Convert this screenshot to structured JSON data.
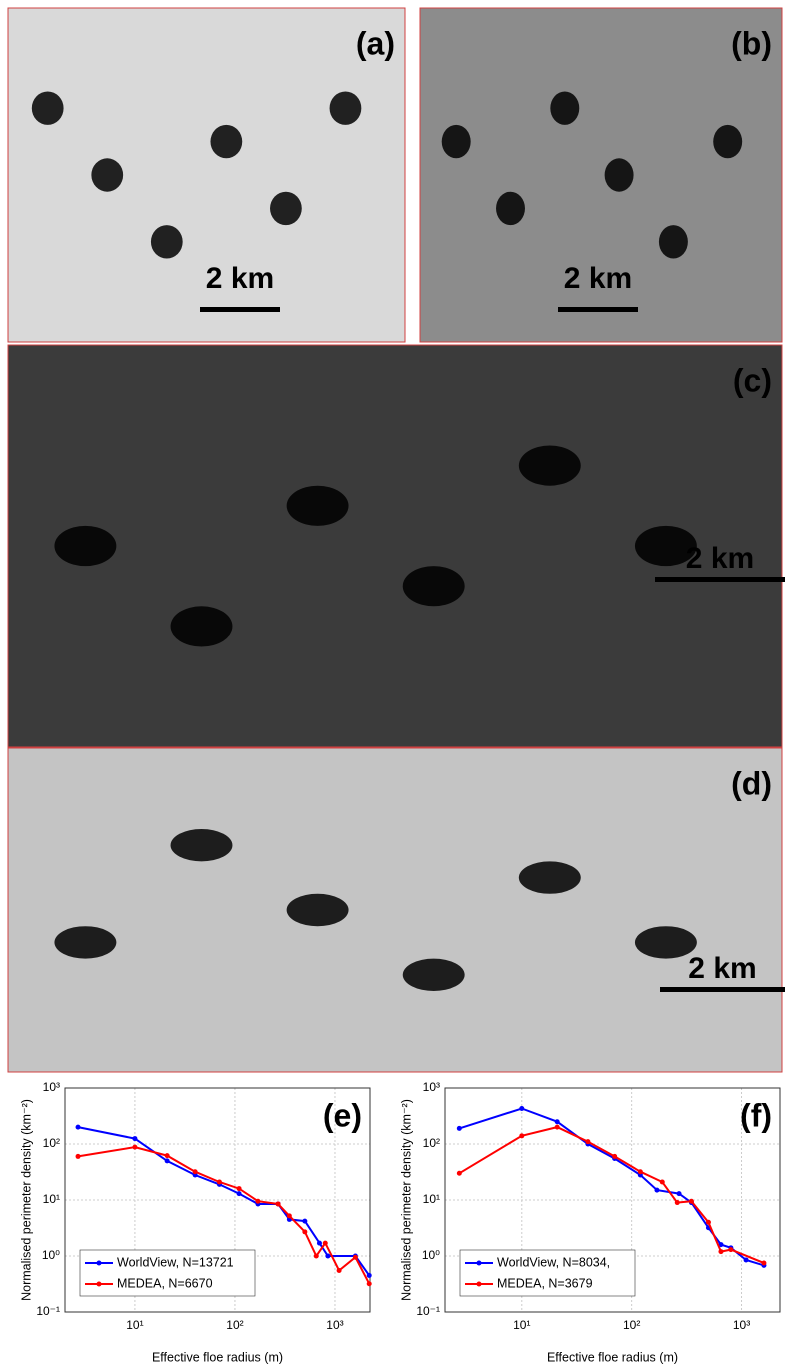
{
  "panels": [
    {
      "label": "(a)",
      "scale_bar": "2 km"
    },
    {
      "label": "(b)",
      "scale_bar": "2 km"
    },
    {
      "label": "(c)",
      "scale_bar": "2 km"
    },
    {
      "label": "(d)",
      "scale_bar": "2 km"
    }
  ],
  "chart_data": [
    {
      "type": "line",
      "panel_label": "(e)",
      "x_label": "Effective floe radius  (m)",
      "y_label": "Normalised perimeter density (km⁻²)",
      "xscale": "log",
      "yscale": "log",
      "grid": true,
      "legend": "lower-left",
      "xlim": [
        2,
        2240
      ],
      "ylim": [
        0.1,
        1000
      ],
      "xticks": [
        {
          "value": 10,
          "label": "10¹"
        },
        {
          "value": 100,
          "label": "10²"
        },
        {
          "value": 1000,
          "label": "10³"
        }
      ],
      "yticks": [
        {
          "value": 0.1,
          "label": "10⁻¹"
        },
        {
          "value": 1,
          "label": "10⁰"
        },
        {
          "value": 10,
          "label": "10¹"
        },
        {
          "value": 100,
          "label": "10²"
        },
        {
          "value": 1000,
          "label": "10³"
        }
      ],
      "series": [
        {
          "name": "WorldView, N=13721",
          "color": "#0000ff",
          "x": [
            2.7,
            10,
            21,
            40,
            70,
            110,
            170,
            270,
            350,
            500,
            700,
            850,
            1600,
            2200
          ],
          "values": [
            200,
            125,
            50,
            28,
            19,
            13,
            8.5,
            8.5,
            4.5,
            4.2,
            1.7,
            1.0,
            1.0,
            0.45
          ]
        },
        {
          "name": "MEDEA, N=6670",
          "color": "#ff0000",
          "x": [
            2.7,
            10,
            21,
            40,
            70,
            110,
            170,
            270,
            350,
            500,
            650,
            800,
            1100,
            1600,
            2200
          ],
          "values": [
            60,
            88,
            62,
            32,
            21,
            16,
            9.5,
            8.5,
            5.2,
            2.7,
            1.0,
            1.7,
            0.55,
            0.95,
            0.32
          ]
        }
      ]
    },
    {
      "type": "line",
      "panel_label": "(f)",
      "x_label": "Effective floe radius  (m)",
      "y_label": "Normalised perimeter density (km⁻²)",
      "xscale": "log",
      "yscale": "log",
      "grid": true,
      "legend": "lower-left",
      "xlim": [
        2,
        2240
      ],
      "ylim": [
        0.1,
        1000
      ],
      "xticks": [
        {
          "value": 10,
          "label": "10¹"
        },
        {
          "value": 100,
          "label": "10²"
        },
        {
          "value": 1000,
          "label": "10³"
        }
      ],
      "yticks": [
        {
          "value": 0.1,
          "label": "10⁻¹"
        },
        {
          "value": 1,
          "label": "10⁰"
        },
        {
          "value": 10,
          "label": "10¹"
        },
        {
          "value": 100,
          "label": "10²"
        },
        {
          "value": 1000,
          "label": "10³"
        }
      ],
      "series": [
        {
          "name": "WorldView, N=8034,",
          "color": "#0000ff",
          "x": [
            2.7,
            10,
            21,
            40,
            70,
            120,
            170,
            270,
            350,
            500,
            650,
            800,
            1100,
            1600
          ],
          "values": [
            190,
            430,
            250,
            100,
            55,
            28,
            15,
            13,
            9,
            3.2,
            1.6,
            1.4,
            0.85,
            0.68
          ]
        },
        {
          "name": "MEDEA, N=3679",
          "color": "#ff0000",
          "x": [
            2.7,
            10,
            21,
            40,
            70,
            120,
            190,
            260,
            350,
            500,
            650,
            800,
            1600
          ],
          "values": [
            30,
            140,
            200,
            110,
            60,
            32,
            21,
            9,
            9.5,
            4,
            1.2,
            1.3,
            0.75
          ]
        }
      ]
    }
  ]
}
